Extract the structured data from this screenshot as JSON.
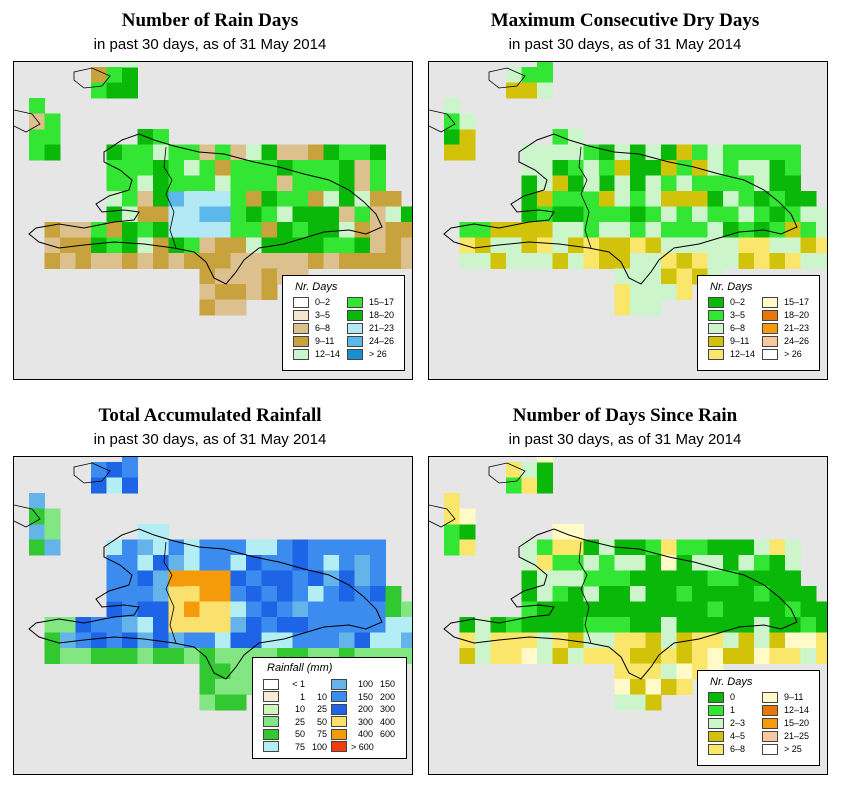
{
  "panels": [
    {
      "id": "rain-days",
      "title": "Number of Rain Days",
      "subtitle": "in past 30 days, as of  31 May 2014",
      "legend": {
        "title": "Nr. Days",
        "items": [
          {
            "label": "0–2",
            "color": "#ffffff"
          },
          {
            "label": "3–5",
            "color": "#f2e6cc"
          },
          {
            "label": "6–8",
            "color": "#dcc08e"
          },
          {
            "label": "9–11",
            "color": "#c8a23c"
          },
          {
            "label": "12–14",
            "color": "#ccf5cc"
          },
          {
            "label": "15–17",
            "color": "#33e633"
          },
          {
            "label": "18–20",
            "color": "#0ab80a"
          },
          {
            "label": "21–23",
            "color": "#b3e8f5"
          },
          {
            "label": "24–26",
            "color": "#5cb8ea"
          },
          {
            "label": "> 26",
            "color": "#1a8fcf"
          }
        ]
      }
    },
    {
      "id": "max-dry-days",
      "title": "Maximum Consecutive Dry Days",
      "subtitle": "in past 30 days, as of  31 May 2014",
      "legend": {
        "title": "Nr. Days",
        "items": [
          {
            "label": "0–2",
            "color": "#0ab80a"
          },
          {
            "label": "3–5",
            "color": "#33e633"
          },
          {
            "label": "6–8",
            "color": "#ccf5cc"
          },
          {
            "label": "9–11",
            "color": "#d2c20a"
          },
          {
            "label": "12–14",
            "color": "#fae66b"
          },
          {
            "label": "15–17",
            "color": "#fffac8"
          },
          {
            "label": "18–20",
            "color": "#e6780a"
          },
          {
            "label": "21–23",
            "color": "#f59a0a"
          },
          {
            "label": "24–26",
            "color": "#f5c8a0"
          },
          {
            "label": "> 26",
            "color": "#ffffff"
          }
        ]
      }
    },
    {
      "id": "total-rainfall",
      "title": "Total Accumulated Rainfall",
      "subtitle": "in past 30 days, as of  31 May 2014",
      "legend": {
        "title": "Rainfall (mm)",
        "items": [
          {
            "label_a": "< 1",
            "label_b": "",
            "color": "#ffffff"
          },
          {
            "label_a": "1",
            "label_b": "10",
            "color": "#f5ebd7"
          },
          {
            "label_a": "10",
            "label_b": "25",
            "color": "#d2f5be"
          },
          {
            "label_a": "25",
            "label_b": "50",
            "color": "#82e682"
          },
          {
            "label_a": "50",
            "label_b": "75",
            "color": "#32c832"
          },
          {
            "label_a": "75",
            "label_b": "100",
            "color": "#b4eef5"
          },
          {
            "label_a": "100",
            "label_b": "150",
            "color": "#64b4ea"
          },
          {
            "label_a": "150",
            "label_b": "200",
            "color": "#3c8cf0"
          },
          {
            "label_a": "200",
            "label_b": "300",
            "color": "#1e64e6"
          },
          {
            "label_a": "300",
            "label_b": "400",
            "color": "#fae16e"
          },
          {
            "label_a": "400",
            "label_b": "600",
            "color": "#f59a0a"
          },
          {
            "label_a": "> 600",
            "label_b": "",
            "color": "#f03c0a"
          }
        ]
      }
    },
    {
      "id": "days-since-rain",
      "title": "Number of Days Since Rain",
      "subtitle": "in past 30 days, as of  31 May 2014",
      "legend": {
        "title": "Nr. Days",
        "items": [
          {
            "label": "0",
            "color": "#0ab80a"
          },
          {
            "label": "1",
            "color": "#33e633"
          },
          {
            "label": "2–3",
            "color": "#ccf5cc"
          },
          {
            "label": "4–5",
            "color": "#d2c20a"
          },
          {
            "label": "6–8",
            "color": "#fae66b"
          },
          {
            "label": "9–11",
            "color": "#fffac8"
          },
          {
            "label": "12–14",
            "color": "#e6780a"
          },
          {
            "label": "15–20",
            "color": "#f59a0a"
          },
          {
            "label": "21–25",
            "color": "#f5c8a0"
          },
          {
            "label": "> 25",
            "color": "#ffffff"
          }
        ]
      }
    }
  ]
}
